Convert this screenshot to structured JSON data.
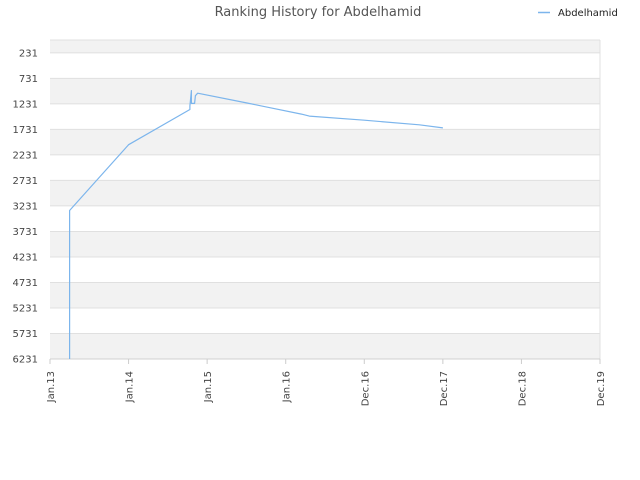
{
  "chart_data": {
    "type": "line",
    "title": "Ranking History for Abdelhamid",
    "xlabel": "",
    "ylabel": "",
    "y_inverted": true,
    "ylim": [
      6231,
      -21
    ],
    "grid": true,
    "legend_position": "top-right",
    "y_ticks": [
      "231",
      "731",
      "1231",
      "1731",
      "2231",
      "2731",
      "3231",
      "3731",
      "4231",
      "4731",
      "5231",
      "5731",
      "6231"
    ],
    "x_ticks": [
      "Jan.13",
      "Jan.14",
      "Jan.15",
      "Jan.16",
      "Dec.16",
      "Dec.17",
      "Dec.18",
      "Dec.19"
    ],
    "series": [
      {
        "name": "Abdelhamid",
        "color": "#7cb5ec",
        "x": [
          0.25,
          0.25,
          1.0,
          1.78,
          1.78,
          1.8,
          1.8,
          1.84,
          1.85,
          1.88,
          2.5,
          3.2,
          3.3,
          4.0,
          4.7,
          5.0
        ],
        "y": [
          6231,
          3320,
          2031,
          1341,
          1271,
          971,
          1221,
          1221,
          1071,
          1021,
          1211,
          1431,
          1471,
          1551,
          1641,
          1701
        ]
      }
    ]
  }
}
